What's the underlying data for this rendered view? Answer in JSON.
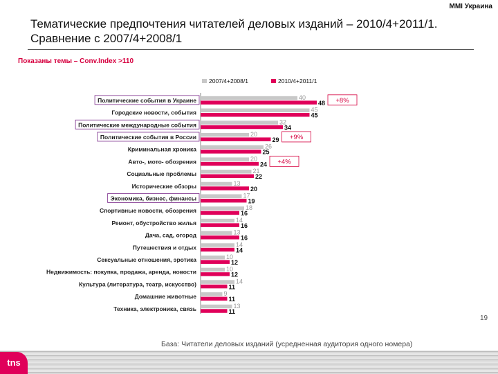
{
  "header": {
    "brand": "MMI Украина",
    "title_line1": "Тематические предпочтения читателей деловых изданий – 2010/4+2011/1.",
    "title_line2": "Сравнение с 2007/4+2008/1",
    "subtitle": "Показаны темы – Conv.Index >110"
  },
  "footer": {
    "base_note": "База: Читатели деловых изданий (усредненная аудитория одного номера)",
    "page_number": "19",
    "logo_text": "tns"
  },
  "colors": {
    "series_old": "#c8c8c8",
    "series_new": "#e0005a",
    "accent": "#d6003f"
  },
  "chart_data": {
    "type": "bar",
    "orientation": "horizontal",
    "title": "",
    "xlabel": "",
    "ylabel": "",
    "legend_position": "top",
    "categories": [
      "Политические события в Украине",
      "Городские новости, события",
      "Политические международные события",
      "Политические события в России",
      "Криминальная хроника",
      "Авто-, мото- обозрения",
      "Социальные проблемы",
      "Исторические обзоры",
      "Экономика, бизнес, финансы",
      "Спортивные новости, обозрения",
      "Ремонт, обустройство жилья",
      "Дача, сад, огород",
      "Путешествия и отдых",
      "Сексуальные отношения, эротика",
      "Недвижимость: покупка, продажа, аренда, новости",
      "Культура (литература, театр, искусство)",
      "Домашние животные",
      "Техника, электроника, связь"
    ],
    "boxed_categories": [
      0,
      2,
      3,
      8
    ],
    "series": [
      {
        "name": "2007/4+2008/1",
        "values": [
          40,
          45,
          32,
          20,
          26,
          20,
          21,
          13,
          17,
          18,
          14,
          13,
          14,
          10,
          10,
          14,
          9,
          13
        ]
      },
      {
        "name": "2010/4+2011/1",
        "values": [
          48,
          45,
          34,
          29,
          25,
          24,
          22,
          20,
          19,
          16,
          16,
          16,
          14,
          12,
          12,
          11,
          11,
          11
        ]
      }
    ],
    "xlim": [
      0,
      50
    ],
    "annotations": [
      {
        "category_index": 0,
        "text": "+8%"
      },
      {
        "category_index": 3,
        "text": "+9%"
      },
      {
        "category_index": 5,
        "text": "+4%"
      }
    ]
  }
}
